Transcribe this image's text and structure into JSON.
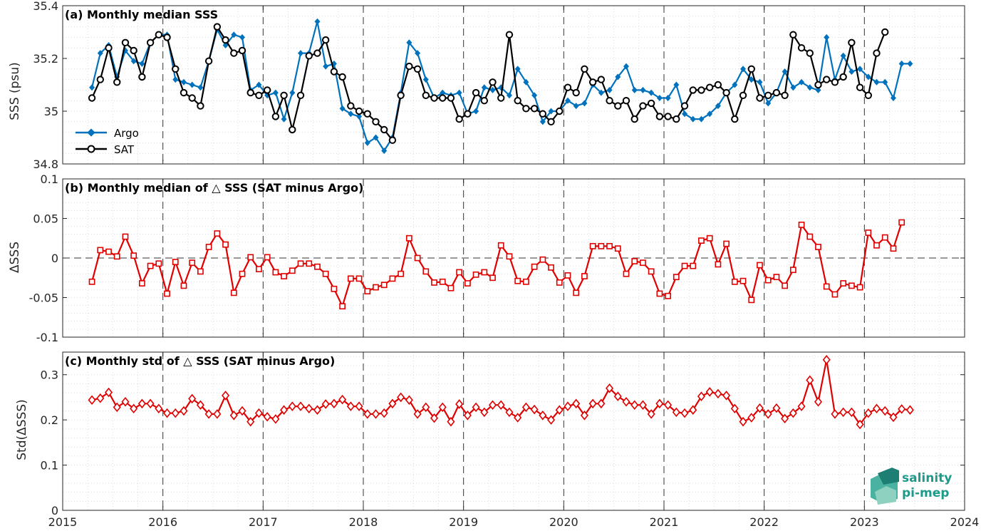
{
  "logo": {
    "line1": "salinity",
    "line2": "pi-mep"
  },
  "chart_data": [
    {
      "type": "line",
      "title": "(a) Monthly median SSS",
      "xlabel": "",
      "ylabel": "SSS (psu)",
      "xlim": [
        2015,
        2024
      ],
      "ylim": [
        34.8,
        35.4
      ],
      "xticks": [
        "2015",
        "2016",
        "2017",
        "2018",
        "2019",
        "2020",
        "2021",
        "2022",
        "2023",
        "2024"
      ],
      "yticks": [
        "34.8",
        "35",
        "35.2",
        "35.4"
      ],
      "grid": true,
      "legend": "bottom-left",
      "x_start": 2015.292,
      "x_step": 0.0833,
      "series": [
        {
          "name": "Argo",
          "color": "#0072BD",
          "marker": "diamond-filled",
          "values": [
            35.09,
            35.22,
            35.25,
            35.13,
            35.23,
            35.19,
            35.18,
            35.26,
            35.29,
            35.29,
            35.12,
            35.11,
            35.1,
            35.09,
            35.19,
            35.31,
            35.25,
            35.29,
            35.28,
            35.08,
            35.1,
            35.06,
            35.07,
            34.97,
            35.07,
            35.22,
            35.22,
            35.34,
            35.17,
            35.18,
            35.01,
            34.99,
            34.98,
            34.88,
            34.9,
            34.85,
            34.9,
            35.07,
            35.26,
            35.22,
            35.12,
            35.05,
            35.07,
            35.06,
            35.07,
            34.99,
            35.0,
            35.09,
            35.08,
            35.09,
            35.06,
            35.16,
            35.11,
            35.06,
            34.96,
            35.0,
            35.0,
            35.04,
            35.02,
            35.03,
            35.1,
            35.07,
            35.08,
            35.13,
            35.17,
            35.08,
            35.08,
            35.07,
            35.05,
            35.05,
            35.1,
            34.99,
            34.97,
            34.97,
            34.99,
            35.02,
            35.07,
            35.1,
            35.16,
            35.12,
            35.11,
            35.03,
            35.07,
            35.15,
            35.09,
            35.11,
            35.09,
            35.08,
            35.28,
            35.12,
            35.21,
            35.15,
            35.16,
            35.13,
            35.11,
            35.11,
            35.05,
            35.18,
            35.18
          ]
        },
        {
          "name": "SAT",
          "color": "#000000",
          "marker": "circle-open",
          "values": [
            35.05,
            35.12,
            35.24,
            35.11,
            35.26,
            35.23,
            35.13,
            35.26,
            35.29,
            35.28,
            35.16,
            35.07,
            35.05,
            35.02,
            35.19,
            35.32,
            35.27,
            35.22,
            35.23,
            35.07,
            35.06,
            35.08,
            34.98,
            35.06,
            34.93,
            35.06,
            35.21,
            35.22,
            35.27,
            35.15,
            35.13,
            35.02,
            35.0,
            34.99,
            34.96,
            34.93,
            34.89,
            35.06,
            35.17,
            35.16,
            35.06,
            35.05,
            35.05,
            35.05,
            34.97,
            34.99,
            35.07,
            35.04,
            35.11,
            35.05,
            35.29,
            35.04,
            35.01,
            35.01,
            34.99,
            34.96,
            35.0,
            35.09,
            35.07,
            35.16,
            35.11,
            35.12,
            35.04,
            35.02,
            35.04,
            34.97,
            35.02,
            35.03,
            34.98,
            34.98,
            34.97,
            35.02,
            35.08,
            35.08,
            35.09,
            35.1,
            35.07,
            34.97,
            35.06,
            35.16,
            35.05,
            35.06,
            35.07,
            35.06,
            35.29,
            35.24,
            35.22,
            35.1,
            35.12,
            35.11,
            35.13,
            35.26,
            35.09,
            35.06,
            35.22,
            35.3
          ]
        }
      ]
    },
    {
      "type": "line",
      "title": "(b) Monthly median of △ SSS (SAT minus Argo)",
      "xlabel": "",
      "ylabel": "ΔSSS",
      "xlim": [
        2015,
        2024
      ],
      "ylim": [
        -0.1,
        0.1
      ],
      "xticks": [
        "2015",
        "2016",
        "2017",
        "2018",
        "2019",
        "2020",
        "2021",
        "2022",
        "2023",
        "2024"
      ],
      "yticks": [
        "-0.1",
        "-0.05",
        "0",
        "0.05",
        "0.1"
      ],
      "grid": true,
      "zero_line": true,
      "x_start": 2015.292,
      "x_step": 0.0833,
      "series": [
        {
          "name": "",
          "color": "#E00000",
          "marker": "square-open",
          "values": [
            -0.03,
            0.01,
            0.008,
            0.002,
            0.027,
            0.003,
            -0.032,
            -0.01,
            -0.007,
            -0.045,
            -0.005,
            -0.035,
            -0.006,
            -0.017,
            0.014,
            0.031,
            0.017,
            -0.044,
            -0.02,
            0.001,
            -0.014,
            0.001,
            -0.018,
            -0.023,
            -0.016,
            -0.007,
            -0.007,
            -0.011,
            -0.02,
            -0.039,
            -0.061,
            -0.026,
            -0.026,
            -0.042,
            -0.037,
            -0.034,
            -0.026,
            -0.02,
            0.025,
            0.0,
            -0.017,
            -0.031,
            -0.03,
            -0.038,
            -0.018,
            -0.032,
            -0.021,
            -0.018,
            -0.025,
            0.016,
            0.002,
            -0.029,
            -0.03,
            -0.011,
            -0.002,
            -0.012,
            -0.031,
            -0.022,
            -0.044,
            -0.023,
            0.015,
            0.015,
            0.015,
            0.012,
            -0.02,
            -0.004,
            -0.006,
            -0.017,
            -0.045,
            -0.048,
            -0.024,
            -0.01,
            -0.01,
            0.022,
            0.025,
            -0.008,
            0.018,
            -0.03,
            -0.029,
            -0.053,
            -0.009,
            -0.028,
            -0.024,
            -0.035,
            -0.015,
            0.042,
            0.027,
            0.014,
            -0.036,
            -0.046,
            -0.032,
            -0.035,
            -0.037,
            0.032,
            0.016,
            0.026,
            0.012,
            0.045
          ]
        }
      ]
    },
    {
      "type": "line",
      "title": "(c) Monthly std of △ SSS (SAT minus Argo)",
      "xlabel": "",
      "ylabel": "Std(ΔSSS)",
      "xlim": [
        2015,
        2024
      ],
      "ylim": [
        0,
        0.35
      ],
      "xticks": [
        "2015",
        "2016",
        "2017",
        "2018",
        "2019",
        "2020",
        "2021",
        "2022",
        "2023",
        "2024"
      ],
      "yticks": [
        "0",
        "0.1",
        "0.2",
        "0.3"
      ],
      "grid": true,
      "x_start": 2015.292,
      "x_step": 0.0833,
      "series": [
        {
          "name": "",
          "color": "#E00000",
          "marker": "diamond-open",
          "values": [
            0.244,
            0.248,
            0.261,
            0.228,
            0.24,
            0.225,
            0.236,
            0.236,
            0.225,
            0.215,
            0.215,
            0.22,
            0.247,
            0.233,
            0.213,
            0.213,
            0.254,
            0.21,
            0.22,
            0.196,
            0.215,
            0.207,
            0.202,
            0.222,
            0.23,
            0.23,
            0.225,
            0.222,
            0.235,
            0.236,
            0.245,
            0.23,
            0.23,
            0.213,
            0.213,
            0.215,
            0.236,
            0.25,
            0.244,
            0.213,
            0.228,
            0.204,
            0.228,
            0.196,
            0.235,
            0.21,
            0.228,
            0.217,
            0.233,
            0.233,
            0.217,
            0.205,
            0.228,
            0.223,
            0.21,
            0.2,
            0.222,
            0.23,
            0.236,
            0.21,
            0.236,
            0.236,
            0.27,
            0.252,
            0.24,
            0.233,
            0.233,
            0.213,
            0.236,
            0.233,
            0.217,
            0.215,
            0.222,
            0.252,
            0.262,
            0.258,
            0.254,
            0.225,
            0.196,
            0.205,
            0.226,
            0.213,
            0.226,
            0.203,
            0.215,
            0.23,
            0.288,
            0.24,
            0.333,
            0.213,
            0.217,
            0.217,
            0.19,
            0.215,
            0.225,
            0.22,
            0.206,
            0.224,
            0.222
          ]
        }
      ]
    }
  ]
}
